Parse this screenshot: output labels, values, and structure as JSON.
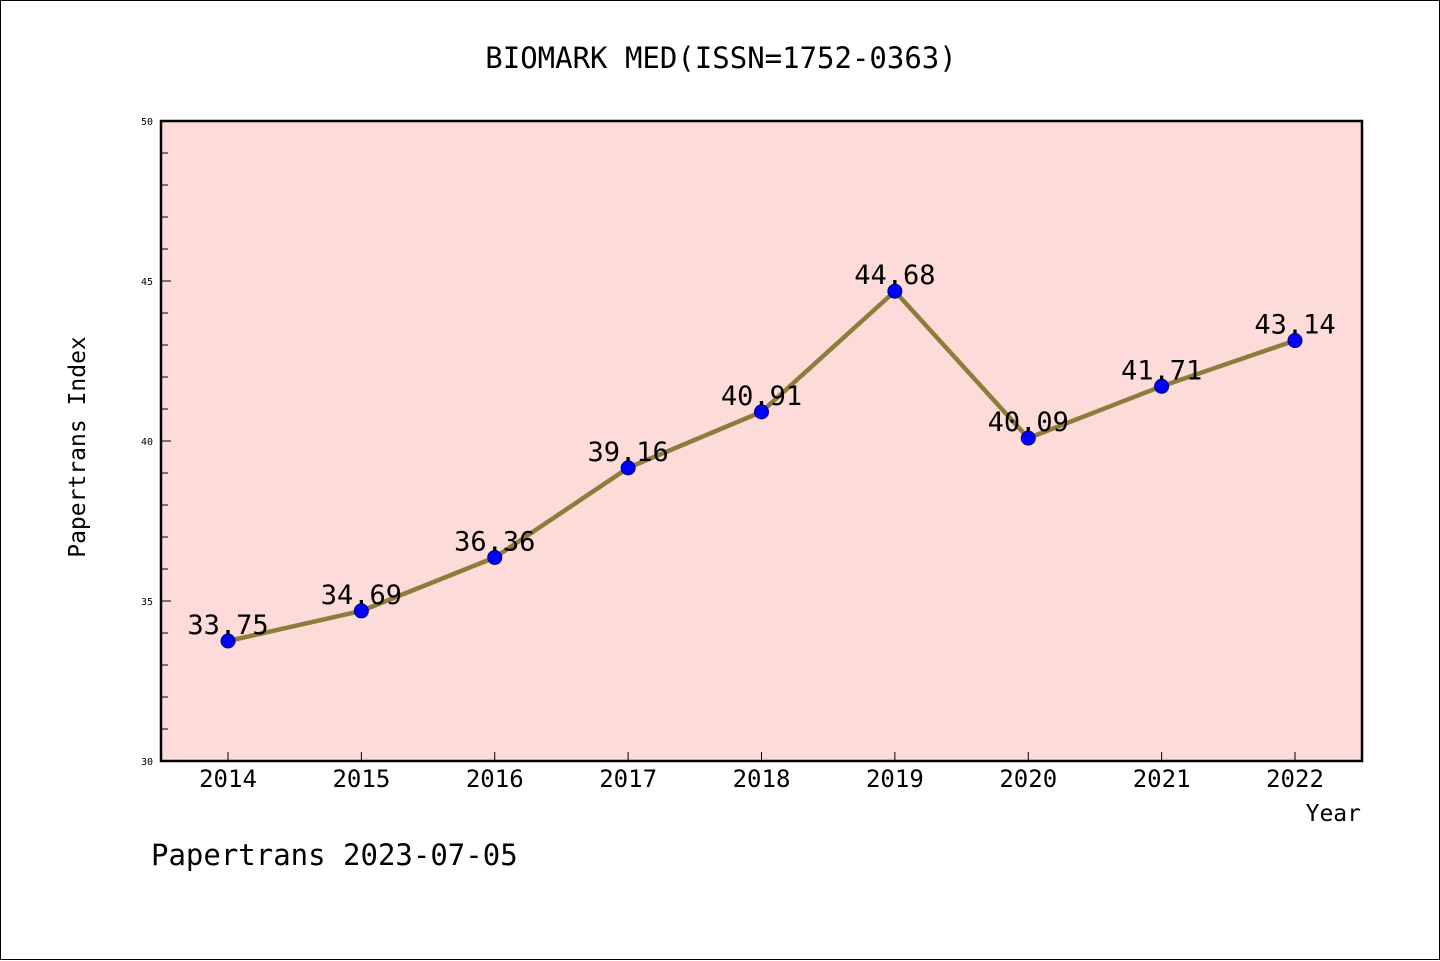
{
  "chart_data": {
    "type": "line",
    "title": "BIOMARK MED(ISSN=1752-0363)",
    "xlabel": "Year",
    "ylabel": "Papertrans Index",
    "categories": [
      "2014",
      "2015",
      "2016",
      "2017",
      "2018",
      "2019",
      "2020",
      "2021",
      "2022"
    ],
    "series": [
      {
        "values": [
          33.75,
          34.69,
          36.36,
          39.16,
          40.91,
          44.68,
          40.09,
          41.71,
          43.14
        ],
        "labels": [
          "33.75",
          "34.69",
          "36.36",
          "39.16",
          "40.91",
          "44.68",
          "40.09",
          "41.71",
          "43.14"
        ],
        "line_color": "#8c7d3c",
        "marker_color": "#0000ff"
      }
    ],
    "ylim": [
      30,
      50
    ],
    "yticks": [
      "30",
      "35",
      "40",
      "45",
      "50"
    ],
    "plot_background": "#fddbd8",
    "grid": false
  },
  "footer": "Papertrans 2023-07-05"
}
